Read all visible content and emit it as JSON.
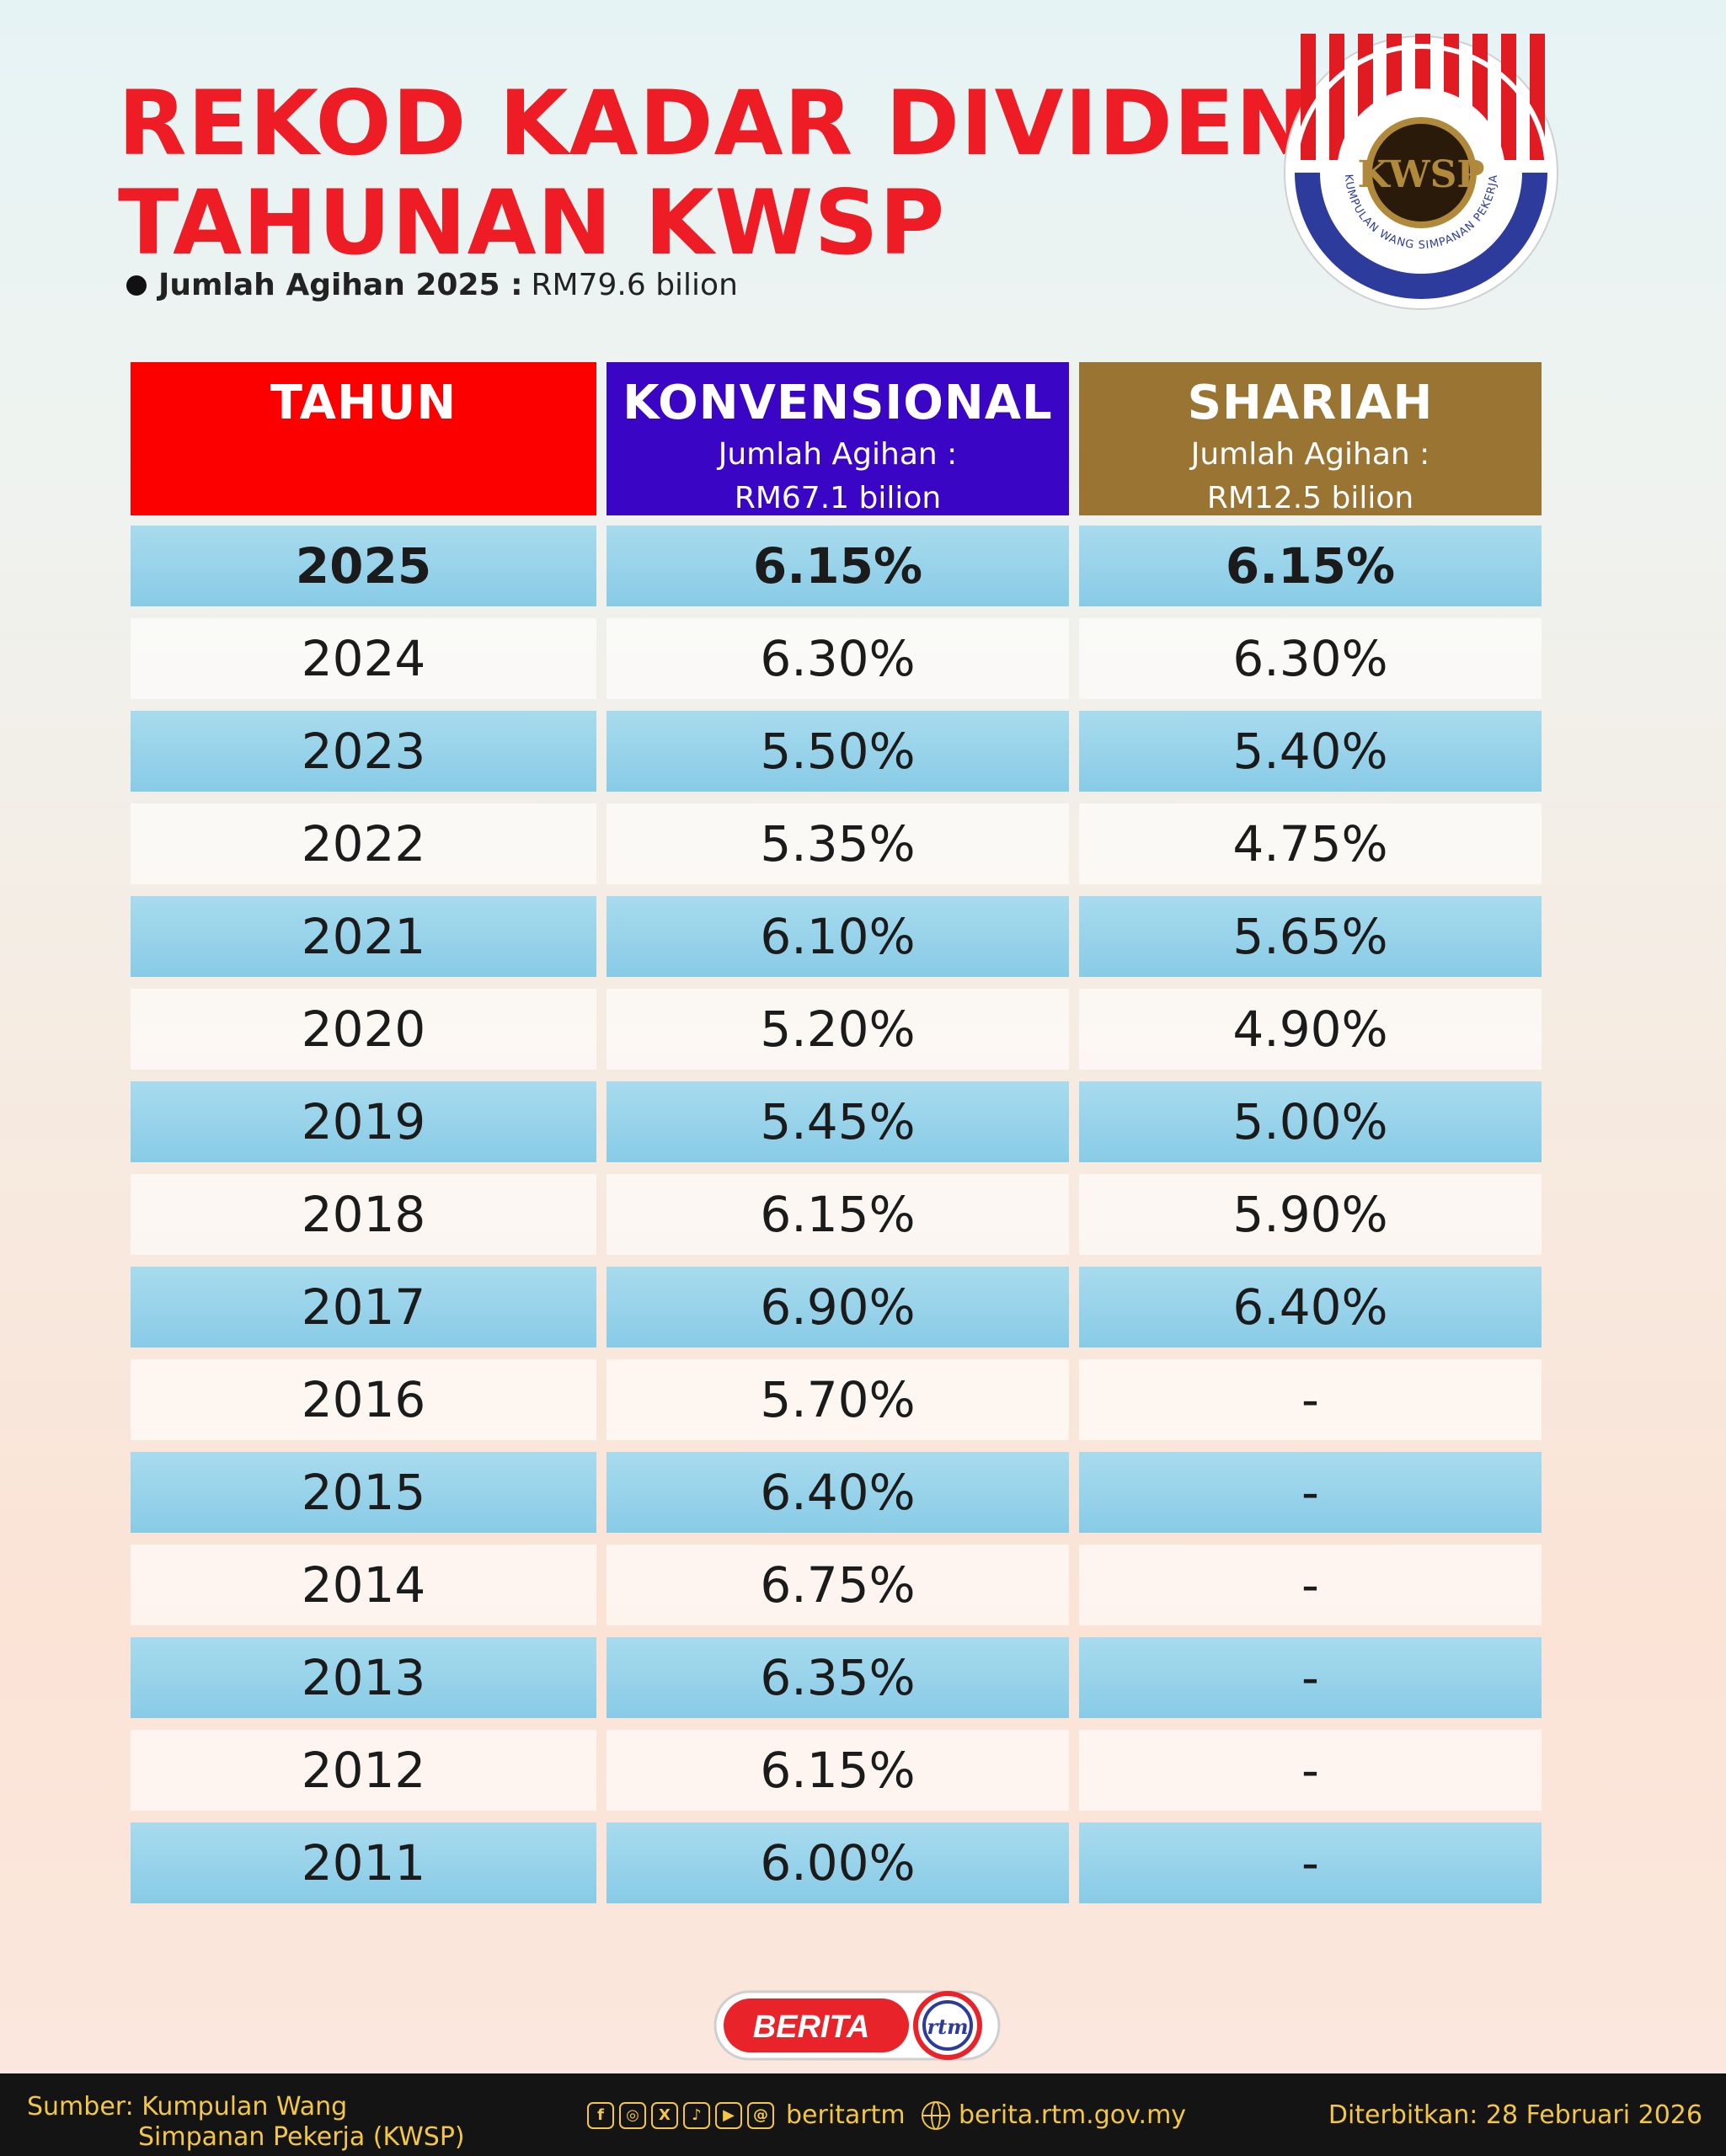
{
  "header": {
    "title_line1": "REKOD KADAR DIVIDEN",
    "title_line2": "TAHUNAN KWSP",
    "summary_label": "Jumlah Agihan 2025 :",
    "summary_value": "RM79.6 bilion"
  },
  "logo": {
    "ring_text": "KUMPULAN WANG SIMPANAN PEKERJA",
    "monogram": "KWSP",
    "colors": {
      "red": "#e11b22",
      "blue": "#2c3b9c",
      "gold": "#b08a3a"
    }
  },
  "table": {
    "col_year": "TAHUN",
    "col_conv": {
      "title": "KONVENSIONAL",
      "sub1": "Jumlah Agihan :",
      "sub2": "RM67.1 bilion"
    },
    "col_shariah": {
      "title": "SHARIAH",
      "sub1": "Jumlah Agihan :",
      "sub2": "RM12.5 bilion"
    },
    "header_colors": {
      "year": "#fc0000",
      "conv": "#3a05c4",
      "shariah": "#9a7432"
    },
    "rows": [
      {
        "year": "2025",
        "conv": "6.15%",
        "shariah": "6.15%"
      },
      {
        "year": "2024",
        "conv": "6.30%",
        "shariah": "6.30%"
      },
      {
        "year": "2023",
        "conv": "5.50%",
        "shariah": "5.40%"
      },
      {
        "year": "2022",
        "conv": "5.35%",
        "shariah": "4.75%"
      },
      {
        "year": "2021",
        "conv": "6.10%",
        "shariah": "5.65%"
      },
      {
        "year": "2020",
        "conv": "5.20%",
        "shariah": "4.90%"
      },
      {
        "year": "2019",
        "conv": "5.45%",
        "shariah": "5.00%"
      },
      {
        "year": "2018",
        "conv": "6.15%",
        "shariah": "5.90%"
      },
      {
        "year": "2017",
        "conv": "6.90%",
        "shariah": "6.40%"
      },
      {
        "year": "2016",
        "conv": "5.70%",
        "shariah": "-"
      },
      {
        "year": "2015",
        "conv": "6.40%",
        "shariah": "-"
      },
      {
        "year": "2014",
        "conv": "6.75%",
        "shariah": "-"
      },
      {
        "year": "2013",
        "conv": "6.35%",
        "shariah": "-"
      },
      {
        "year": "2012",
        "conv": "6.15%",
        "shariah": "-"
      },
      {
        "year": "2011",
        "conv": "6.00%",
        "shariah": "-"
      }
    ]
  },
  "badge": {
    "brand": "BERITA",
    "mark": "rtm"
  },
  "footer": {
    "source_line1": "Sumber: Kumpulan Wang",
    "source_line2": "Simpanan Pekerja (KWSP)",
    "social_icons": [
      "facebook-icon",
      "instagram-icon",
      "x-icon",
      "tiktok-icon",
      "youtube-icon",
      "threads-icon"
    ],
    "handle": "beritartm",
    "website": "berita.rtm.gov.my",
    "published": "Diterbitkan: 28 Februari 2026"
  }
}
